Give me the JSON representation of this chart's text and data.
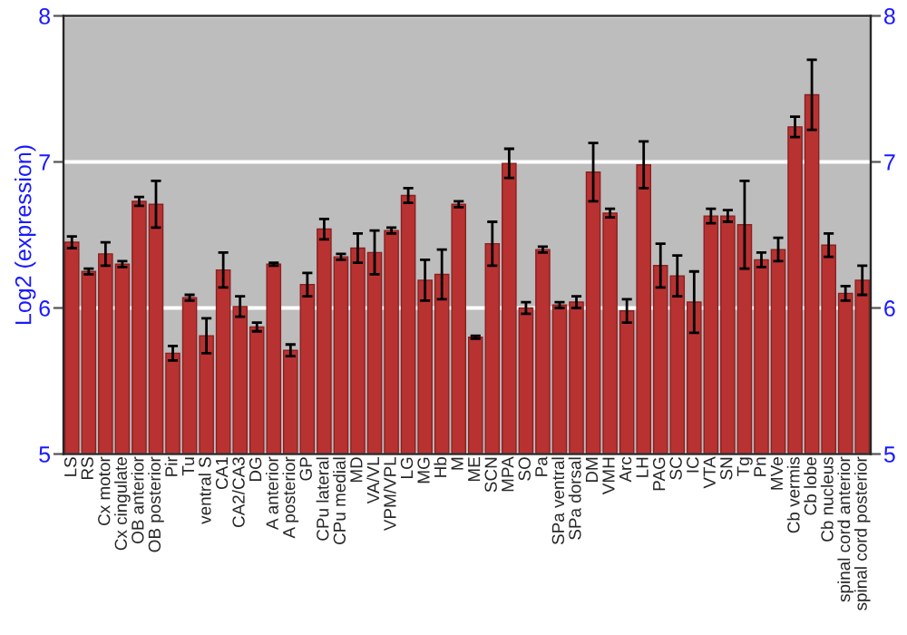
{
  "chart_data": {
    "type": "bar",
    "ylabel": "Log2 (expression)",
    "categories": [
      "LS",
      "RS",
      "Cx motor",
      "Cx cingulate",
      "OB anterior",
      "OB posterior",
      "Pir",
      "Tu",
      "ventral S",
      "CA1",
      "CA2/CA3",
      "DG",
      "A anterior",
      "A posterior",
      "GP",
      "CPu lateral",
      "CPu medial",
      "MD",
      "VA/VL",
      "VPM/VPL",
      "LG",
      "MG",
      "Hb",
      "M",
      "ME",
      "SCN",
      "MPA",
      "SO",
      "Pa",
      "SPa ventral",
      "SPa dorsal",
      "DM",
      "VMH",
      "Arc",
      "LH",
      "PAG",
      "SC",
      "IC",
      "VTA",
      "SN",
      "Tg",
      "Pn",
      "MVe",
      "Cb vermis",
      "Cb lobe",
      "Cb nucleus",
      "spinal cord anterior",
      "spinal cord posterior"
    ],
    "values": [
      6.45,
      6.25,
      6.37,
      6.3,
      6.73,
      6.71,
      5.69,
      6.07,
      5.81,
      6.26,
      6.01,
      5.87,
      6.3,
      5.71,
      6.16,
      6.54,
      6.35,
      6.41,
      6.38,
      6.53,
      6.77,
      6.19,
      6.23,
      6.71,
      5.8,
      6.44,
      6.99,
      6.0,
      6.4,
      6.02,
      6.04,
      6.93,
      6.65,
      5.98,
      6.98,
      6.29,
      6.22,
      6.04,
      6.63,
      6.63,
      6.57,
      6.33,
      6.4,
      7.24,
      7.46,
      6.43,
      6.1,
      6.19
    ],
    "errors": [
      0.04,
      0.02,
      0.08,
      0.02,
      0.03,
      0.16,
      0.05,
      0.02,
      0.12,
      0.12,
      0.07,
      0.03,
      0.01,
      0.04,
      0.08,
      0.07,
      0.02,
      0.1,
      0.15,
      0.02,
      0.05,
      0.14,
      0.17,
      0.02,
      0.01,
      0.15,
      0.1,
      0.04,
      0.02,
      0.02,
      0.04,
      0.2,
      0.03,
      0.08,
      0.16,
      0.15,
      0.14,
      0.21,
      0.05,
      0.04,
      0.3,
      0.05,
      0.08,
      0.07,
      0.24,
      0.08,
      0.05,
      0.1
    ],
    "color": "#b83232",
    "ylim": [
      5,
      8
    ],
    "yticks": [
      5,
      6,
      7,
      8
    ],
    "y2lim": [
      5,
      8
    ],
    "y2ticks": [
      5,
      6,
      7,
      8
    ],
    "grid": "y"
  }
}
